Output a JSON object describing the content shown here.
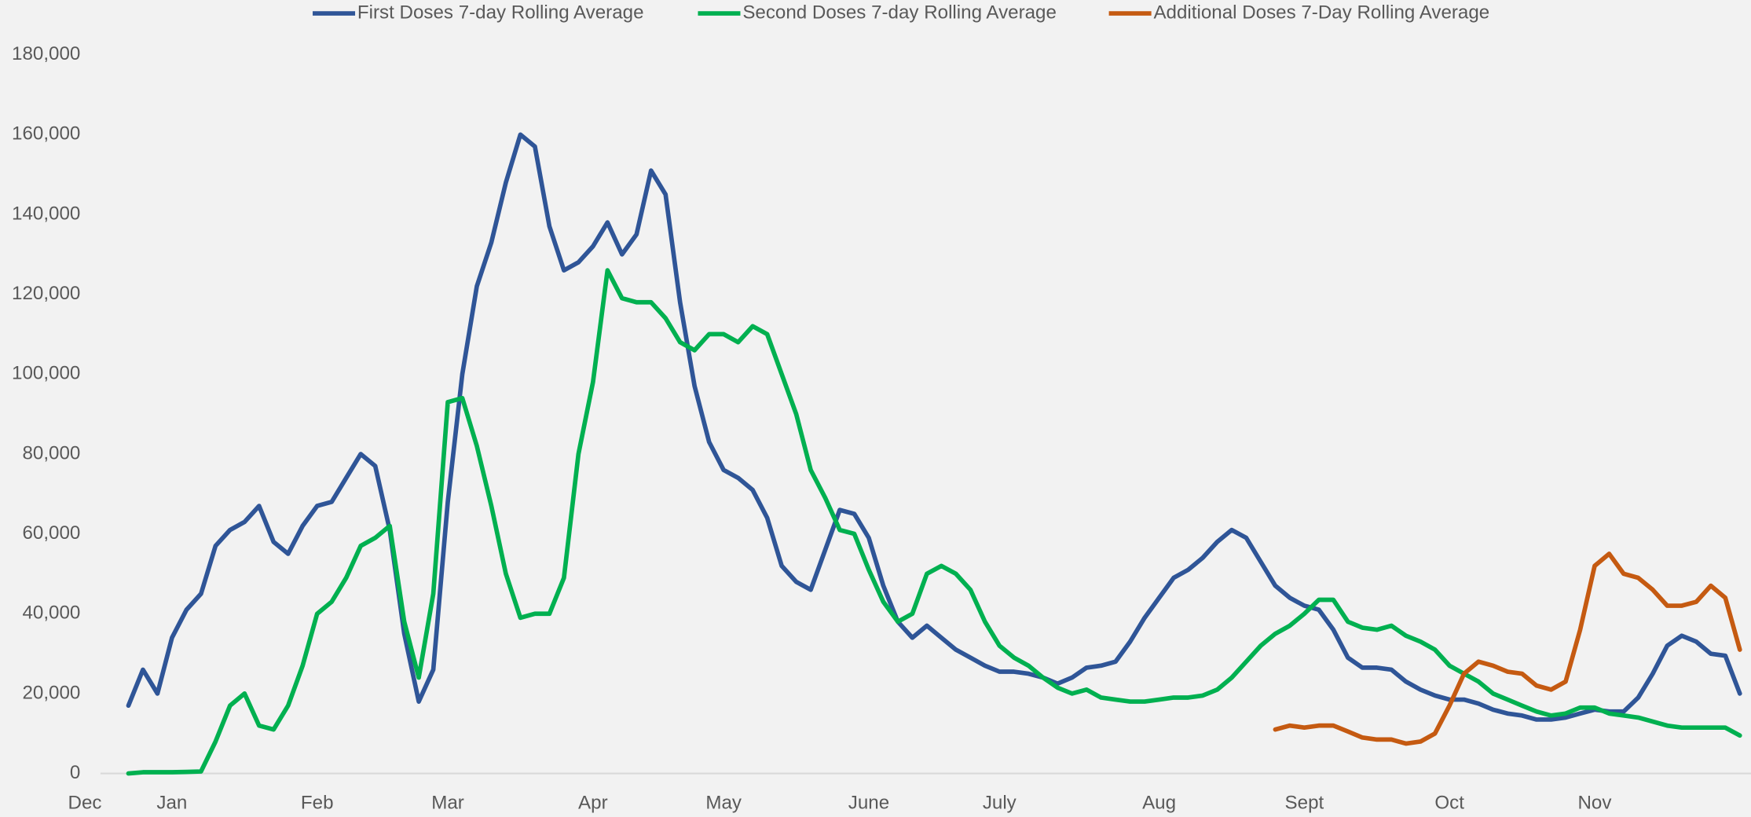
{
  "chart_data": {
    "type": "line",
    "categories": [
      "Dec",
      null,
      null,
      null,
      null,
      null,
      "Jan",
      null,
      null,
      null,
      null,
      null,
      null,
      null,
      null,
      null,
      "Feb",
      null,
      null,
      null,
      null,
      null,
      null,
      null,
      null,
      "Mar",
      null,
      null,
      null,
      null,
      null,
      null,
      null,
      null,
      null,
      "Apr",
      null,
      null,
      null,
      null,
      null,
      null,
      null,
      null,
      "May",
      null,
      null,
      null,
      null,
      null,
      null,
      null,
      null,
      null,
      "June",
      null,
      null,
      null,
      null,
      null,
      null,
      null,
      null,
      "July",
      null,
      null,
      null,
      null,
      null,
      null,
      null,
      null,
      null,
      null,
      "Aug",
      null,
      null,
      null,
      null,
      null,
      null,
      null,
      null,
      null,
      "Sept",
      null,
      null,
      null,
      null,
      null,
      null,
      null,
      null,
      null,
      "Oct",
      null,
      null,
      null,
      null,
      null,
      null,
      null,
      null,
      null,
      "Nov",
      null,
      null,
      null,
      null,
      null,
      null,
      null,
      null,
      null,
      null
    ],
    "series": [
      {
        "name": "First Doses 7-day Rolling Average",
        "color": "#2f5597",
        "values": [
          null,
          null,
          null,
          17000,
          26000,
          20000,
          34000,
          41000,
          45000,
          57000,
          61000,
          63000,
          67000,
          58000,
          55000,
          62000,
          67000,
          68000,
          74000,
          80000,
          77000,
          61000,
          35000,
          18000,
          26000,
          68000,
          100000,
          122000,
          133000,
          148000,
          160000,
          157000,
          137000,
          126000,
          128000,
          132000,
          138000,
          130000,
          135000,
          151000,
          145000,
          118000,
          97000,
          83000,
          76000,
          74000,
          71000,
          64000,
          52000,
          48000,
          46000,
          56000,
          66000,
          65000,
          59000,
          47000,
          38000,
          34000,
          37000,
          34000,
          31000,
          29000,
          27000,
          25500,
          25500,
          25000,
          24000,
          22500,
          24000,
          26500,
          27000,
          28000,
          33000,
          39000,
          44000,
          49000,
          51000,
          54000,
          58000,
          61000,
          59000,
          53000,
          47000,
          44000,
          42000,
          41000,
          36000,
          29000,
          26500,
          26500,
          26000,
          23000,
          21000,
          19500,
          18500,
          18500,
          17500,
          16000,
          15000,
          14500,
          13500,
          13500,
          14000,
          15000,
          16000,
          15500,
          15500,
          19000,
          25000,
          32000,
          34500,
          33000,
          30000,
          29500,
          20000
        ]
      },
      {
        "name": "Second Doses 7-day Rolling Average",
        "color": "#00b050",
        "values": [
          null,
          null,
          null,
          0,
          300,
          300,
          300,
          400,
          500,
          8000,
          17000,
          20000,
          12000,
          11000,
          17000,
          27000,
          40000,
          43000,
          49000,
          57000,
          59000,
          62000,
          38000,
          24000,
          45000,
          93000,
          94000,
          82000,
          67000,
          50000,
          39000,
          40000,
          40000,
          49000,
          80000,
          98000,
          126000,
          119000,
          118000,
          118000,
          114000,
          108000,
          106000,
          110000,
          110000,
          108000,
          112000,
          110000,
          100000,
          90000,
          76000,
          69000,
          61000,
          60000,
          51000,
          43000,
          38000,
          40000,
          50000,
          52000,
          50000,
          46000,
          38000,
          32000,
          29000,
          27000,
          24000,
          21500,
          20000,
          21000,
          19000,
          18500,
          18000,
          18000,
          18500,
          19000,
          19000,
          19500,
          21000,
          24000,
          28000,
          32000,
          35000,
          37000,
          40000,
          43500,
          43500,
          38000,
          36500,
          36000,
          37000,
          34500,
          33000,
          31000,
          27000,
          25000,
          23000,
          20000,
          18500,
          17000,
          15500,
          14500,
          15000,
          16500,
          16500,
          15000,
          14500,
          14000,
          13000,
          12000,
          11500,
          11500,
          11500,
          11500,
          9500
        ]
      },
      {
        "name": "Additional Doses 7-Day Rolling Average",
        "color": "#c55a11",
        "values": [
          null,
          null,
          null,
          null,
          null,
          null,
          null,
          null,
          null,
          null,
          null,
          null,
          null,
          null,
          null,
          null,
          null,
          null,
          null,
          null,
          null,
          null,
          null,
          null,
          null,
          null,
          null,
          null,
          null,
          null,
          null,
          null,
          null,
          null,
          null,
          null,
          null,
          null,
          null,
          null,
          null,
          null,
          null,
          null,
          null,
          null,
          null,
          null,
          null,
          null,
          null,
          null,
          null,
          null,
          null,
          null,
          null,
          null,
          null,
          null,
          null,
          null,
          null,
          null,
          null,
          null,
          null,
          null,
          null,
          null,
          null,
          null,
          null,
          null,
          null,
          null,
          null,
          null,
          null,
          null,
          null,
          null,
          11000,
          12000,
          11500,
          12000,
          12000,
          10500,
          9000,
          8500,
          8500,
          7500,
          8000,
          10000,
          17000,
          25000,
          28000,
          27000,
          25500,
          25000,
          22000,
          21000,
          23000,
          36000,
          52000,
          55000,
          50000,
          49000,
          46000,
          42000,
          42000,
          43000,
          47000,
          44000,
          31000
        ]
      }
    ],
    "ylim": [
      0,
      180000
    ],
    "yticks": [
      0,
      {
        "value": 20000,
        "label": "20,000"
      },
      {
        "value": 40000,
        "label": "40,000"
      },
      {
        "value": 60000,
        "label": "60,000"
      },
      {
        "value": 80000,
        "label": "80,000"
      },
      {
        "value": 100000,
        "label": "100,000"
      },
      {
        "value": 120000,
        "label": "120,000"
      },
      {
        "value": 140000,
        "label": "140,000"
      },
      {
        "value": 160000,
        "label": "160,000"
      },
      {
        "value": 180000,
        "label": "180,000"
      }
    ],
    "grid": false,
    "legend": "top"
  }
}
